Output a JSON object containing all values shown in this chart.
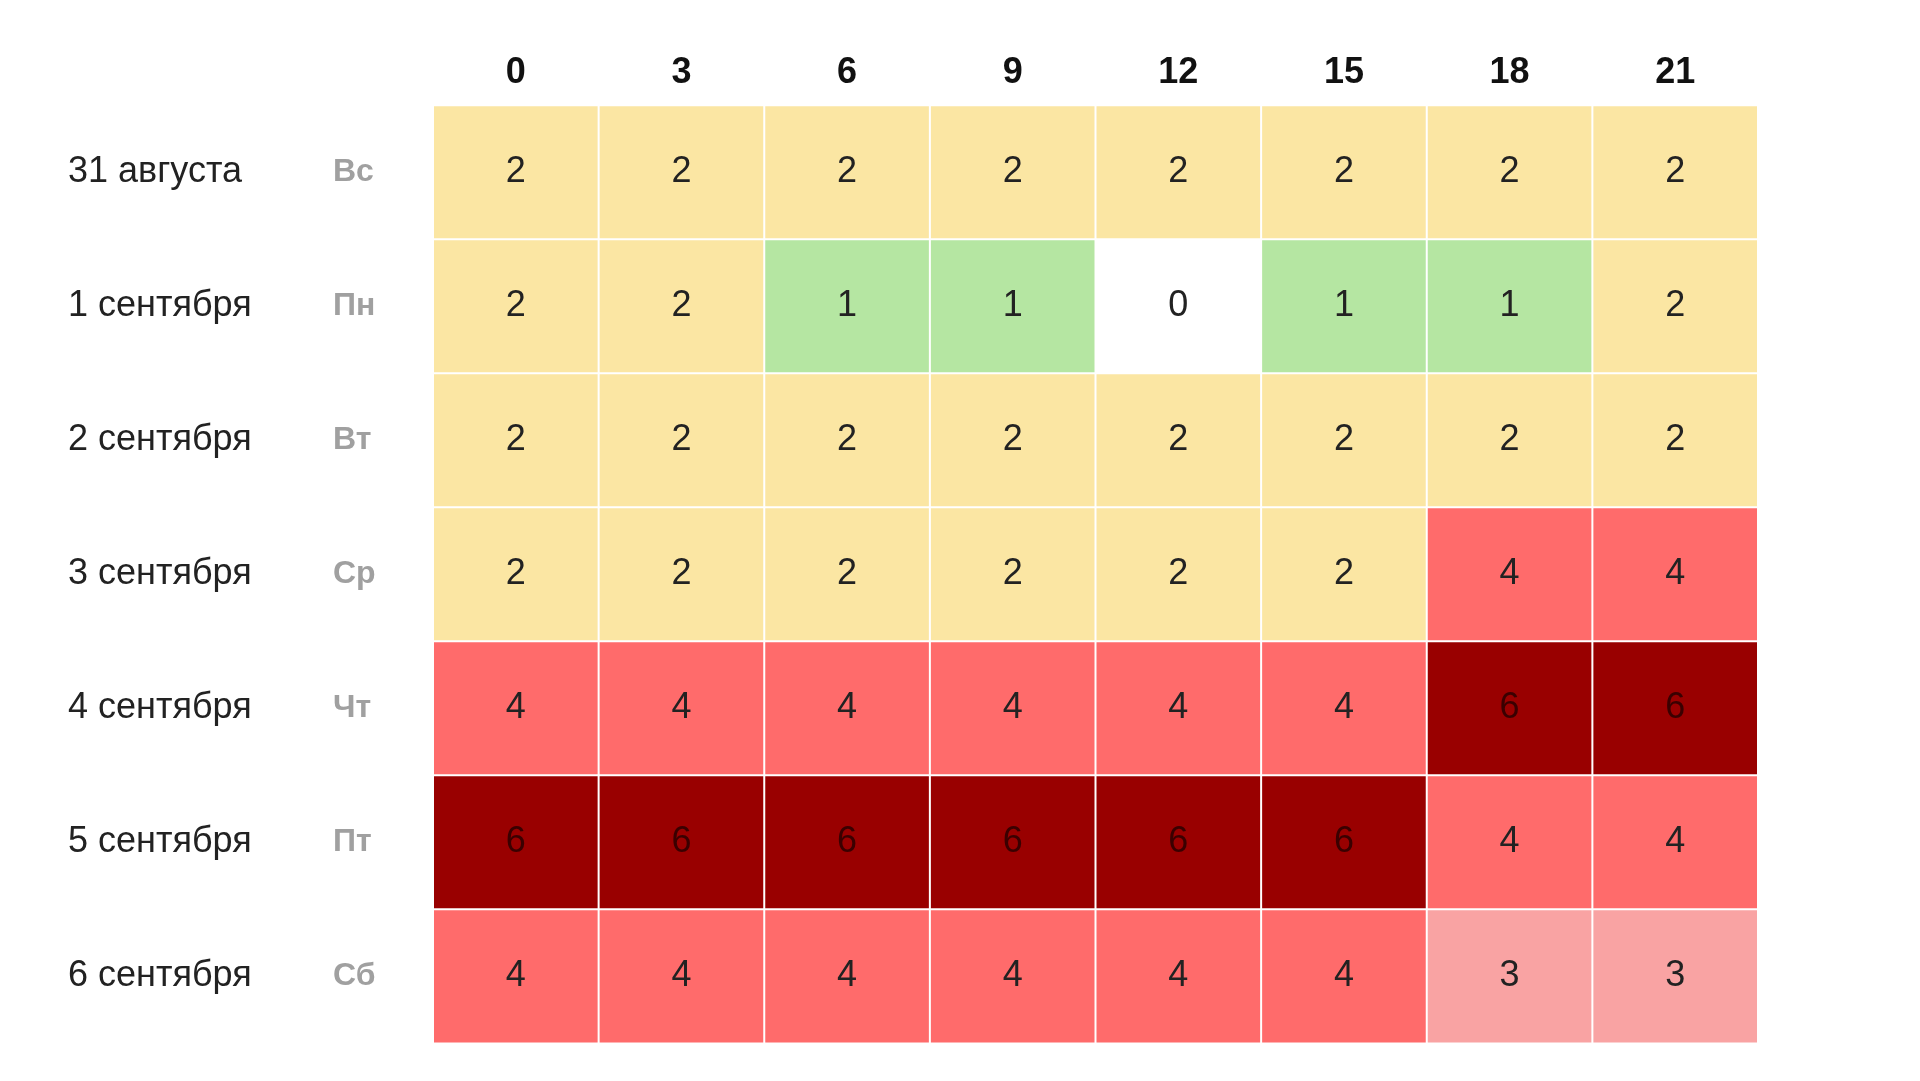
{
  "chart_data": {
    "type": "heatmap",
    "categories": [
      "0",
      "3",
      "6",
      "9",
      "12",
      "15",
      "18",
      "21"
    ],
    "y_categories": [
      "31 августа",
      "1 сентября",
      "2 сентября",
      "3 сентября",
      "4 сентября",
      "5 сентября",
      "6 сентября"
    ],
    "y2_categories": [
      "Вс",
      "Пн",
      "Вт",
      "Ср",
      "Чт",
      "Пт",
      "Сб"
    ],
    "cells": [
      [
        2,
        2,
        2,
        2,
        2,
        2,
        2,
        2
      ],
      [
        2,
        2,
        1,
        1,
        0,
        1,
        1,
        2
      ],
      [
        2,
        2,
        2,
        2,
        2,
        2,
        2,
        2
      ],
      [
        2,
        2,
        2,
        2,
        2,
        2,
        4,
        4
      ],
      [
        4,
        4,
        4,
        4,
        4,
        4,
        6,
        6
      ],
      [
        6,
        6,
        6,
        6,
        6,
        6,
        4,
        4
      ],
      [
        4,
        4,
        4,
        4,
        4,
        4,
        3,
        3
      ]
    ],
    "data_labels": true
  }
}
